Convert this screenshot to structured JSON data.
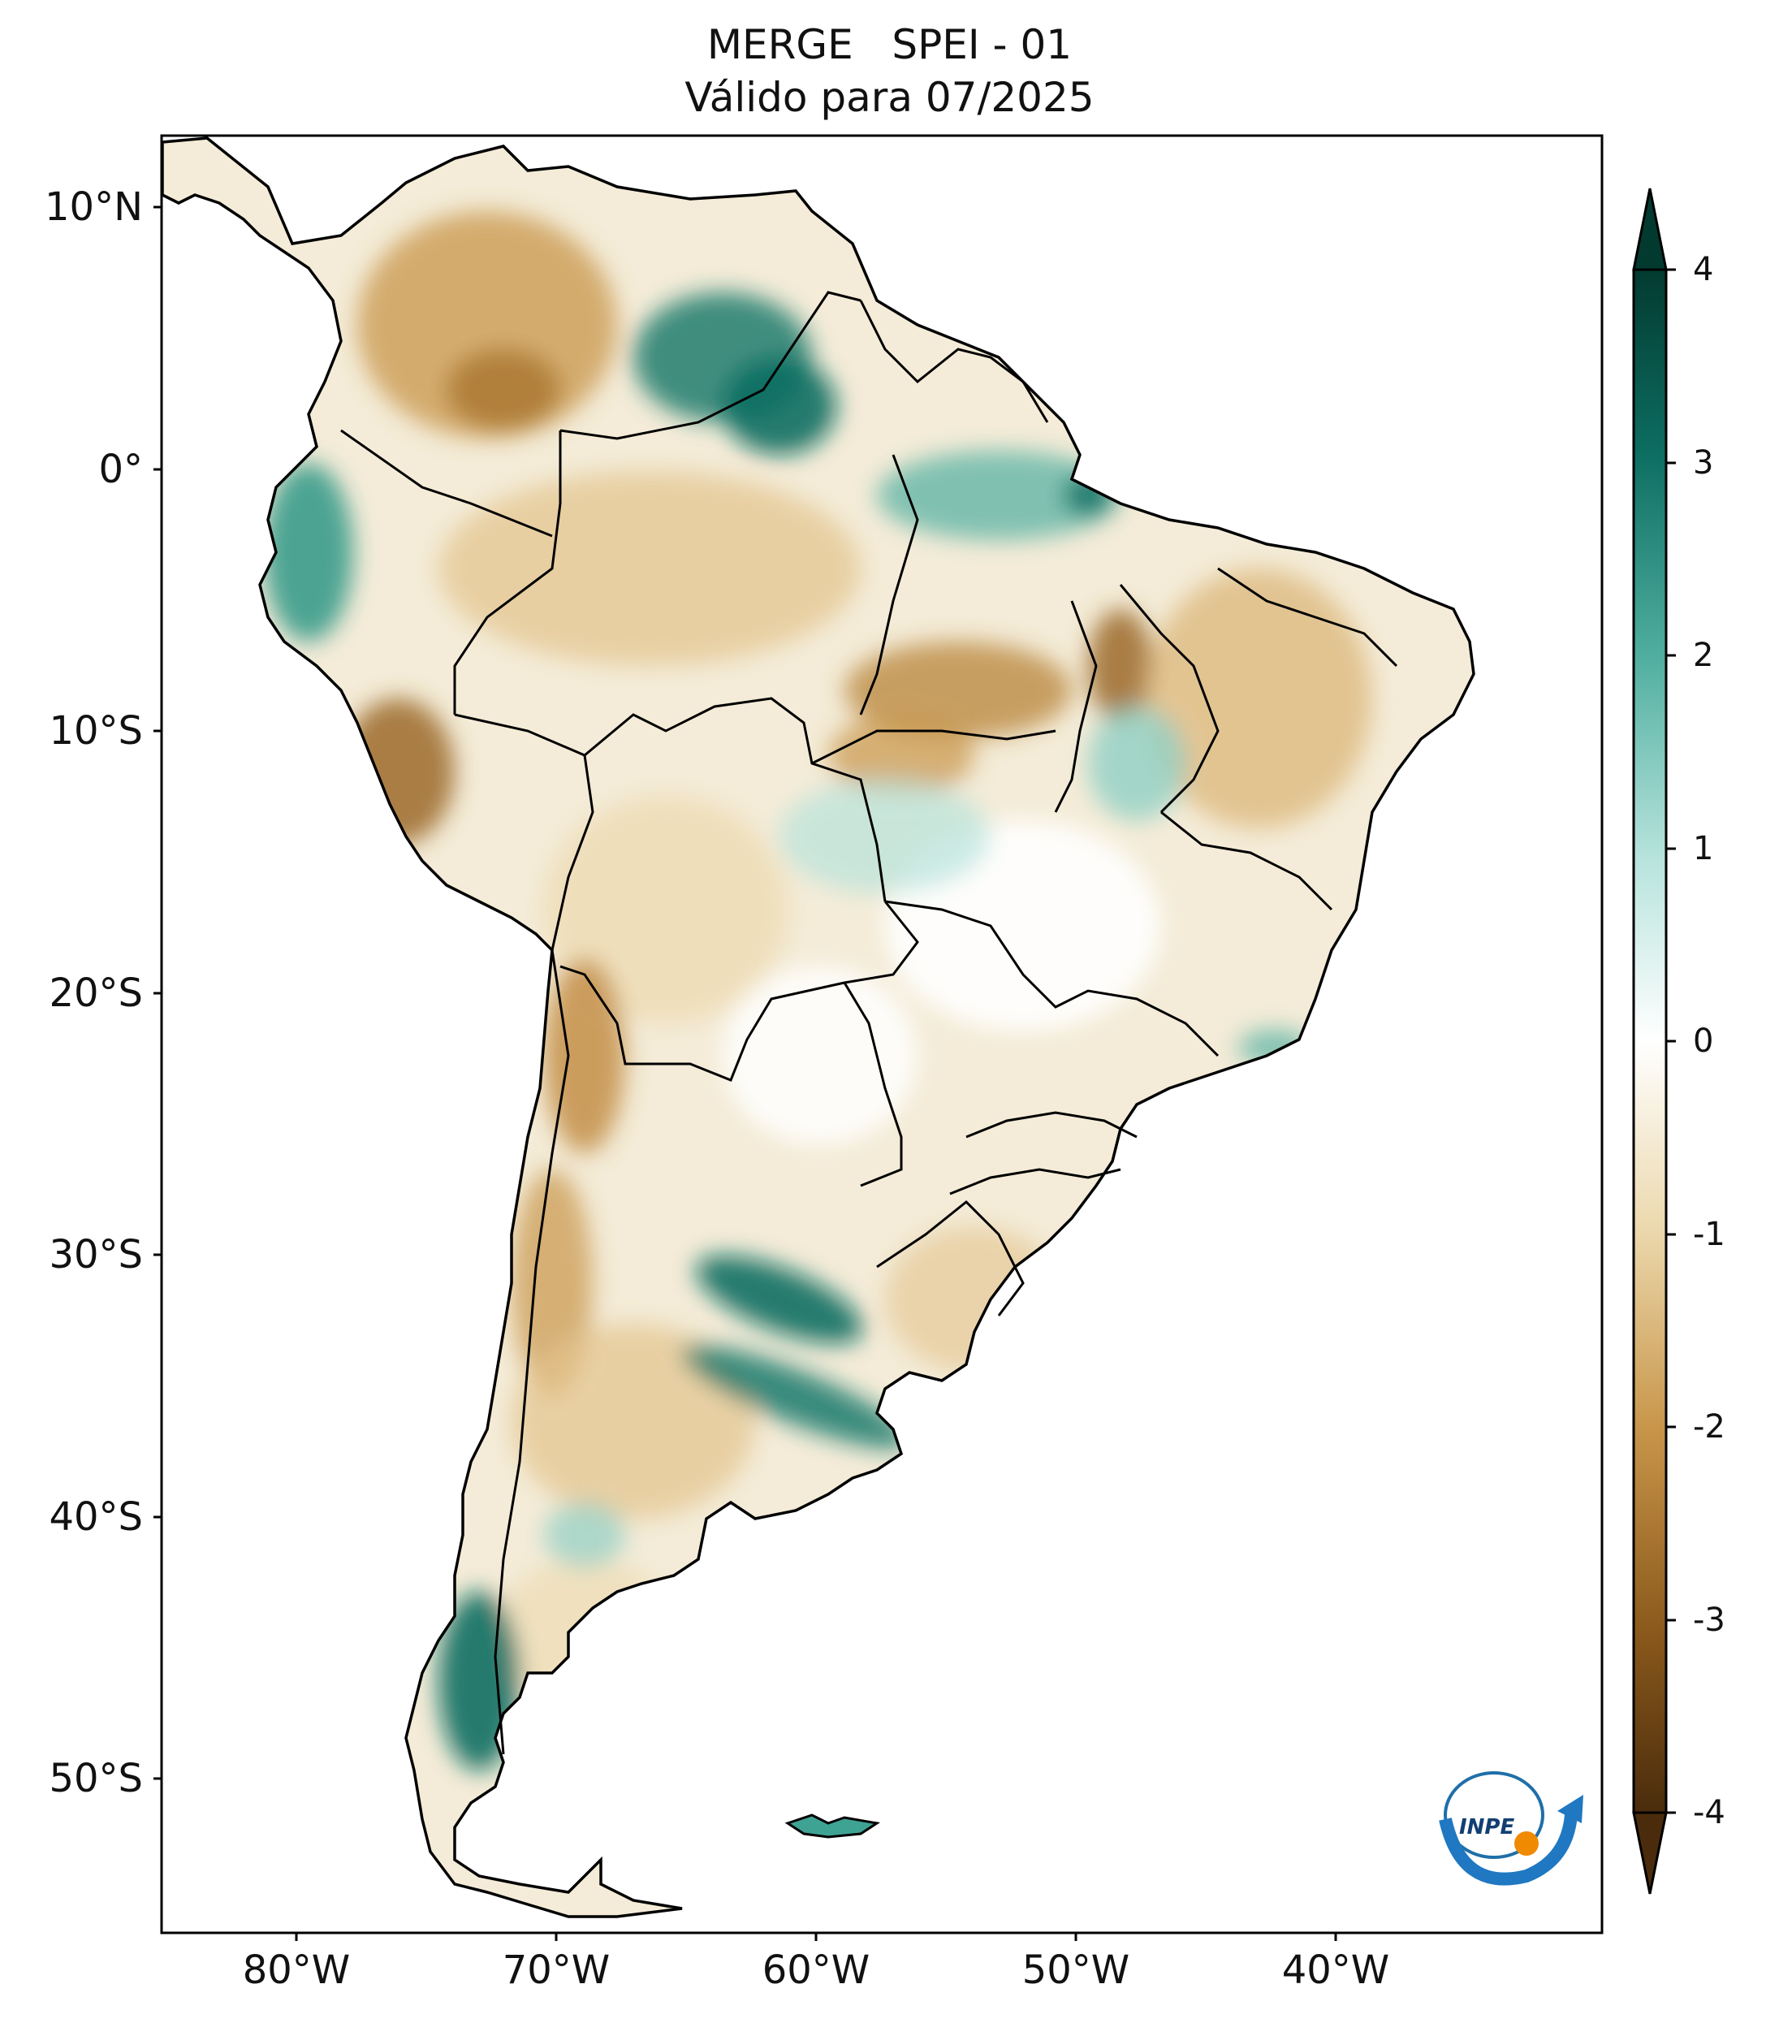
{
  "title": {
    "line1": "MERGE   SPEI - 01",
    "line2": "Válido para 07/2025"
  },
  "map": {
    "region": "South America",
    "variable": "SPEI - 01",
    "colormap": "BrBG",
    "lat_ticks": [
      "10°N",
      "0°",
      "10°S",
      "20°S",
      "30°S",
      "40°S",
      "50°S"
    ],
    "lon_ticks": [
      "80°W",
      "70°W",
      "60°W",
      "50°W",
      "40°W"
    ],
    "logo_text": "INPE",
    "colors": {
      "dry_dark": "#5b3a12",
      "dry": "#b8843a",
      "dry_light": "#e8d2a3",
      "neutral": "#ffffff",
      "wet_light": "#b3e2da",
      "wet": "#3fa394",
      "wet_dark": "#0b5c50"
    }
  },
  "colorbar": {
    "ticks": [
      "4",
      "3",
      "2",
      "1",
      "0",
      "-1",
      "-2",
      "-3",
      "-4"
    ],
    "min": -4,
    "max": 4,
    "extend": "both"
  }
}
